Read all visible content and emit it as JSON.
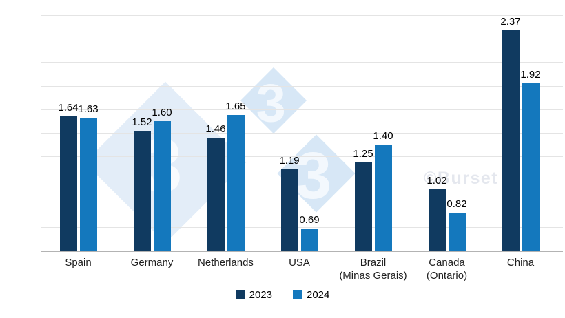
{
  "watermark": {
    "credit": "©Burset",
    "logo_digit": "3",
    "diamond_color_large": "#e3edf8",
    "diamond_color_small": "#d7e7f6",
    "digit_color": "#f5f9fd"
  },
  "chart_data": {
    "type": "bar",
    "title": "",
    "xlabel": "",
    "ylabel": "",
    "categories": [
      "Spain",
      "Germany",
      "Netherlands",
      "USA",
      "Brazil\n(Minas Gerais)",
      "Canada\n(Ontario)",
      "China"
    ],
    "series": [
      {
        "name": "2023",
        "color": "#103a60",
        "values": [
          1.64,
          1.52,
          1.46,
          1.19,
          1.25,
          1.02,
          2.37
        ]
      },
      {
        "name": "2024",
        "color": "#1478bd",
        "values": [
          1.63,
          1.6,
          1.65,
          0.69,
          1.4,
          0.82,
          1.92
        ]
      }
    ],
    "ylim": [
      0.5,
      2.5
    ],
    "gridline_step": 0.2,
    "grid": true,
    "y_axis_labels_visible": false,
    "value_labels": true,
    "value_label_format": "0.00",
    "legend_position": "bottom",
    "gridline_color": "#e4e4e4",
    "axis_line_color": "#b3b3b3"
  }
}
